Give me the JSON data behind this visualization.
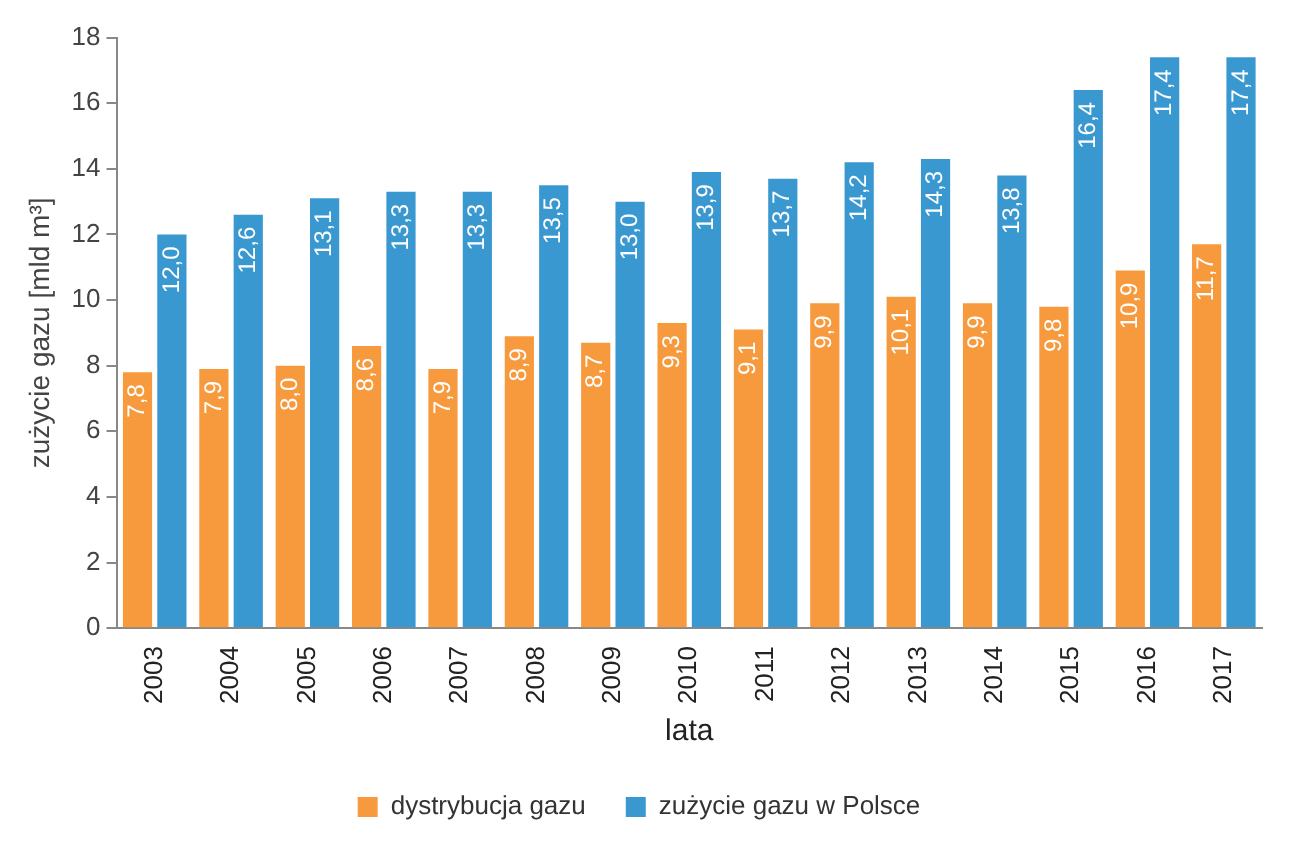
{
  "chart_data": {
    "type": "bar",
    "xlabel": "lata",
    "ylabel": "zużycie gazu [mld m³]",
    "categories": [
      "2003",
      "2004",
      "2005",
      "2006",
      "2007",
      "2008",
      "2009",
      "2010",
      "2011",
      "2012",
      "2013",
      "2014",
      "2015",
      "2016",
      "2017"
    ],
    "series": [
      {
        "name": "dystrybucja gazu",
        "color": "#f79a3e",
        "values": [
          7.8,
          7.9,
          8.0,
          8.6,
          7.9,
          8.9,
          8.7,
          9.3,
          9.1,
          9.9,
          10.1,
          9.9,
          9.8,
          10.9,
          11.7
        ],
        "value_labels": [
          "7,8",
          "7,9",
          "8,0",
          "8,6",
          "7,9",
          "8,9",
          "8,7",
          "9,3",
          "9,1",
          "9,9",
          "10,1",
          "9,9",
          "9,8",
          "10,9",
          "11,7"
        ]
      },
      {
        "name": "zużycie gazu w Polsce",
        "color": "#3a98d0",
        "values": [
          12.0,
          12.6,
          13.1,
          13.3,
          13.3,
          13.5,
          13.0,
          13.9,
          13.7,
          14.2,
          14.3,
          13.8,
          16.4,
          17.4,
          17.4
        ],
        "value_labels": [
          "12,0",
          "12,6",
          "13,1",
          "13,3",
          "13,3",
          "13,5",
          "13,0",
          "13,9",
          "13,7",
          "14,2",
          "14,3",
          "13,8",
          "16,4",
          "17,4",
          "17,4"
        ]
      }
    ],
    "ylim": [
      0,
      18
    ],
    "yticks": [
      0,
      2,
      4,
      6,
      8,
      10,
      12,
      14,
      16,
      18
    ],
    "grid": false,
    "legend": "bottom"
  }
}
